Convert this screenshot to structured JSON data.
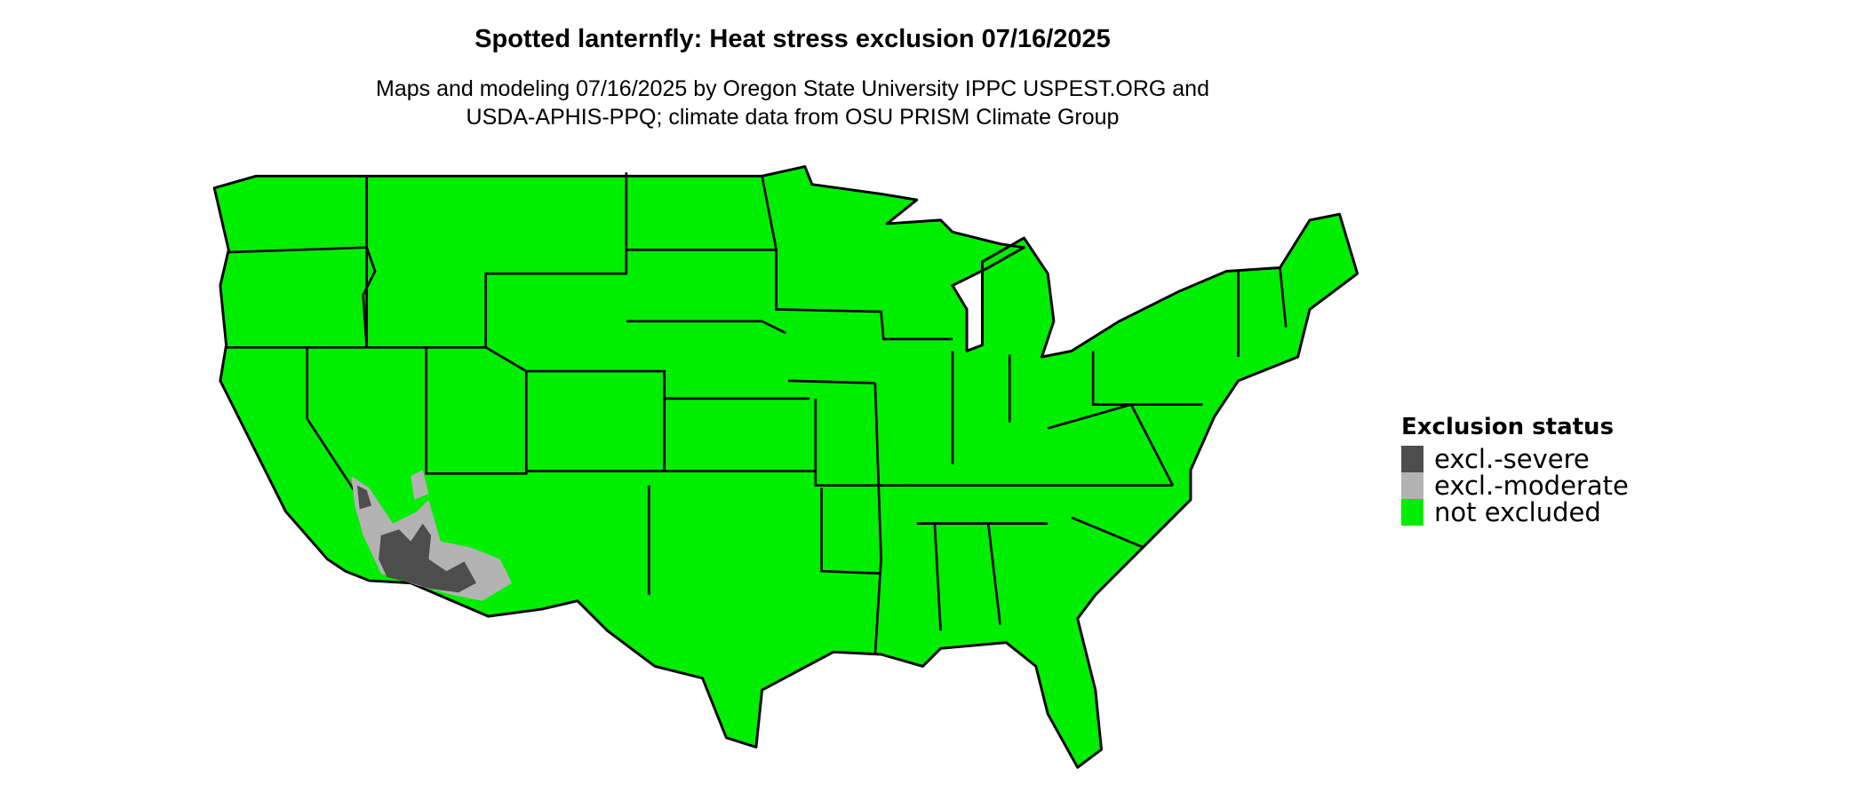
{
  "title": "Spotted lanternfly: Heat stress exclusion 07/16/2025",
  "subtitle_line1": "Maps and modeling 07/16/2025 by Oregon State University IPPC USPEST.ORG and",
  "subtitle_line2": "USDA-APHIS-PPQ; climate data from OSU PRISM Climate Group",
  "legend": {
    "title": "Exclusion status",
    "items": [
      {
        "label": "excl.-severe",
        "color": "#4d4d4d"
      },
      {
        "label": "excl.-moderate",
        "color": "#b3b3b3"
      },
      {
        "label": "not excluded",
        "color": "#00ee00"
      }
    ]
  },
  "map": {
    "region": "Contiguous United States",
    "base_color": "#00ee00",
    "border_color": "#000000",
    "excluded_region": "Southwest (Arizona / southeastern California / southern Nevada)"
  }
}
